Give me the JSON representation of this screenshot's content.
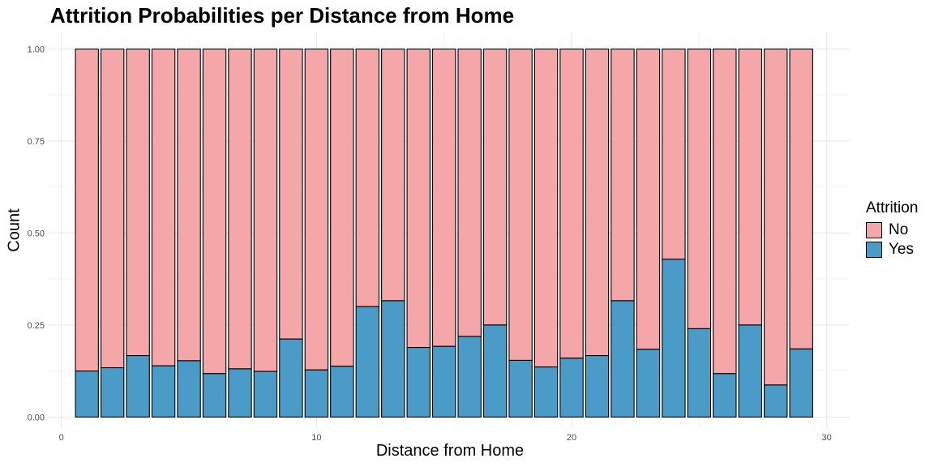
{
  "chart_data": {
    "type": "bar",
    "stacked": true,
    "title": "Attrition Probabilities per Distance from Home",
    "xlabel": "Distance from Home",
    "ylabel": "Count",
    "xlim": [
      -0.5,
      30.9
    ],
    "ylim": [
      -0.03,
      1.045
    ],
    "x_ticks": [
      0,
      10,
      20,
      30
    ],
    "y_ticks": [
      0.0,
      0.25,
      0.5,
      0.75,
      1.0
    ],
    "y_tick_labels": [
      "0.00",
      "0.25",
      "0.50",
      "0.75",
      "1.00"
    ],
    "grid": true,
    "legend": {
      "title": "Attrition",
      "position": "right"
    },
    "x": [
      1,
      2,
      3,
      4,
      5,
      6,
      7,
      8,
      9,
      10,
      11,
      12,
      13,
      14,
      15,
      16,
      17,
      18,
      19,
      20,
      21,
      22,
      23,
      24,
      25,
      26,
      27,
      28,
      29
    ],
    "series": [
      {
        "name": "No",
        "color": "#F4A6A8",
        "values": [
          0.875,
          0.866,
          0.833,
          0.861,
          0.847,
          0.882,
          0.869,
          0.876,
          0.788,
          0.872,
          0.862,
          0.7,
          0.684,
          0.811,
          0.808,
          0.781,
          0.75,
          0.846,
          0.864,
          0.84,
          0.833,
          0.684,
          0.816,
          0.571,
          0.76,
          0.882,
          0.75,
          0.913,
          0.815
        ]
      },
      {
        "name": "Yes",
        "color": "#4B9BC8",
        "values": [
          0.125,
          0.134,
          0.167,
          0.139,
          0.153,
          0.118,
          0.131,
          0.124,
          0.212,
          0.128,
          0.138,
          0.3,
          0.316,
          0.189,
          0.192,
          0.219,
          0.25,
          0.154,
          0.136,
          0.16,
          0.167,
          0.316,
          0.184,
          0.429,
          0.24,
          0.118,
          0.25,
          0.087,
          0.185
        ]
      }
    ]
  }
}
